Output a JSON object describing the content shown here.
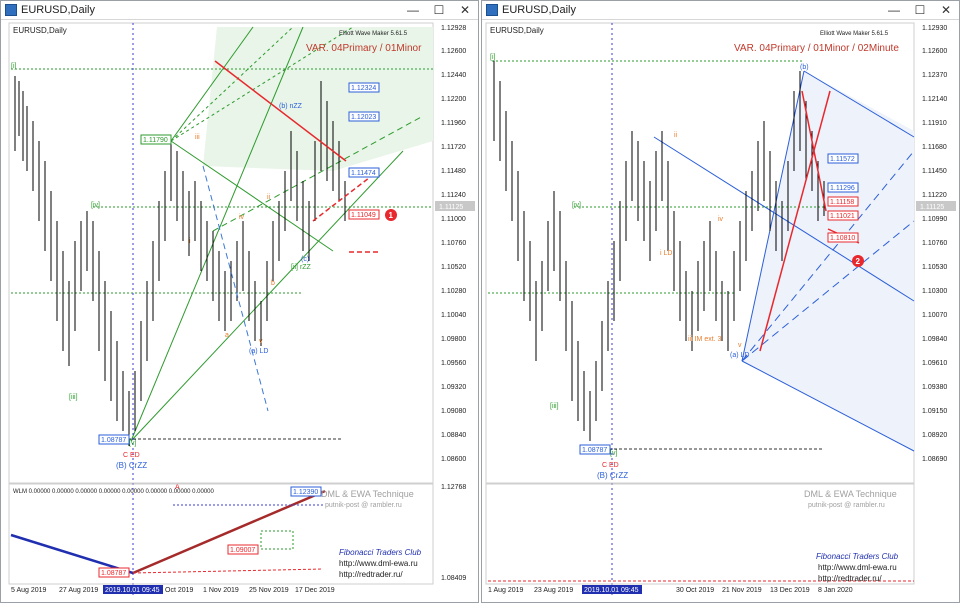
{
  "windows": [
    {
      "title": "EURUSD,Daily",
      "chart_label": "EURUSD,Daily",
      "indicator_name": "Elliott Wave Maker 5.61.5",
      "variant": "VAR. 04Primary / 01Minor",
      "price_scale": [
        "1.12928",
        "1.12600",
        "1.12440",
        "1.12200",
        "1.11960",
        "1.11720",
        "1.11480",
        "1.11240",
        "1.11000",
        "1.10760",
        "1.10520",
        "1.10280",
        "1.10040",
        "1.09800",
        "1.09560",
        "1.09320",
        "1.09080",
        "1.08840",
        "1.08600"
      ],
      "current_price": "1.11125",
      "price_boxes": [
        "1.11790",
        "1.12324",
        "1.12023",
        "1.11474",
        "1.11049",
        "1.08787"
      ],
      "wave_labels": [
        "[i]",
        "[iv]",
        "[iii]",
        "[v]",
        "C ED",
        "(B) CrZZ",
        "(b) nZZ",
        "(c)",
        "[ii] rZZ",
        "iii",
        "iv",
        "a",
        "b",
        "v",
        "(a) LD",
        "i",
        "ii",
        "A"
      ],
      "marker": "1",
      "sub_label": "WLM 0.00000 0.00000 0.00000 0.00000 0.00000 0.00000 0.00000 0.00000",
      "sub_scale": [
        "1.12768",
        "1.08409"
      ],
      "sub_boxes": [
        "1.12390",
        "1.09007",
        "1.08787"
      ],
      "watermark": [
        "DML & EWA Technique",
        "putnik-post @ rambler.ru",
        "Fibonacci   Traders   Club",
        "http://www.dml-ewa.ru",
        "http://redtrader.ru/"
      ],
      "time_axis": [
        "5 Aug 2019",
        "27 Aug 2019",
        "2019.10.01 09:45",
        "Oct 2019",
        "1 Nov 2019",
        "25 Nov 2019",
        "17 Dec 2019"
      ]
    },
    {
      "title": "EURUSD,Daily",
      "chart_label": "EURUSD,Daily",
      "indicator_name": "Elliott Wave Maker 5.61.5",
      "variant": "VAR. 04Primary / 01Minor / 02Minute",
      "price_scale": [
        "1.12930",
        "1.12600",
        "1.12370",
        "1.12140",
        "1.11910",
        "1.11680",
        "1.11450",
        "1.11220",
        "1.10990",
        "1.10760",
        "1.10530",
        "1.10300",
        "1.10070",
        "1.09840",
        "1.09610",
        "1.09380",
        "1.09150",
        "1.08920",
        "1.08690"
      ],
      "current_price": "1.11125",
      "price_boxes": [
        "1.11572",
        "1.11296",
        "1.11158",
        "1.11021",
        "1.10810",
        "1.08787"
      ],
      "wave_labels": [
        "[i]",
        "[iv]",
        "[iii]",
        "[v]",
        "C ED",
        "(B) CrZZ",
        "(b)",
        "i LD",
        "iv",
        "iii IM ext. 3",
        "(a) LD",
        "ii",
        "v"
      ],
      "marker": "2",
      "watermark": [
        "DML & EWA Technique",
        "putnik-post @ rambler.ru",
        "Fibonacci   Traders   Club",
        "http://www.dml-ewa.ru",
        "http://redtrader.ru/"
      ],
      "time_axis": [
        "1 Aug 2019",
        "23 Aug 2019",
        "2019.10.01 09:45",
        "30 Oct 2019",
        "21 Nov 2019",
        "13 Dec 2019",
        "8 Jan 2020"
      ]
    }
  ],
  "colors": {
    "up": "#000000",
    "grid": "#2e9a2e",
    "red": "#e8282d",
    "blue": "#2b5fd8",
    "darkred": "#a52a2a",
    "navy": "#1f2fb0"
  }
}
